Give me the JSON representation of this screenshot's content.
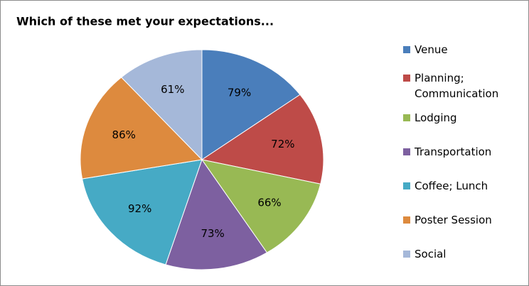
{
  "chart_data": {
    "type": "pie",
    "title": "Which of these met your expectations...",
    "categories": [
      "Venue",
      "Planning; Communication",
      "Lodging",
      "Transportation",
      "Coffee; Lunch",
      "Poster Session",
      "Social"
    ],
    "values": [
      79,
      72,
      66,
      73,
      92,
      86,
      61
    ],
    "value_labels": [
      "79%",
      "72%",
      "66%",
      "73%",
      "92%",
      "86%",
      "61%"
    ],
    "colors": [
      "#4a7ebb",
      "#be4b48",
      "#98b954",
      "#7d60a0",
      "#46aac5",
      "#dd8a3e",
      "#a5b8d9"
    ],
    "legend": "right"
  }
}
